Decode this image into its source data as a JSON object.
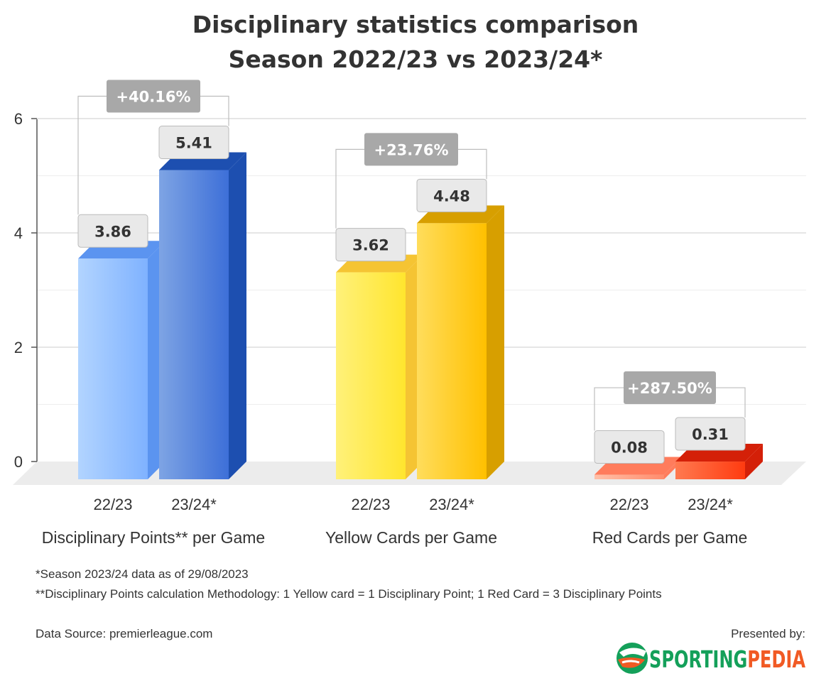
{
  "chart_data": {
    "type": "bar",
    "title": [
      "Disciplinary statistics comparison",
      "Season 2022/23 vs 2023/24*"
    ],
    "ylim": [
      0,
      6
    ],
    "yticks": [
      0,
      2,
      4,
      6
    ],
    "grid": true,
    "groups": [
      {
        "label": "Disciplinary Points** per Game",
        "change": "+40.16%",
        "bars": [
          {
            "category": "22/23",
            "value": 3.86,
            "label": "3.86"
          },
          {
            "category": "23/24*",
            "value": 5.41,
            "label": "5.41"
          }
        ]
      },
      {
        "label": "Yellow Cards per Game",
        "change": "+23.76%",
        "bars": [
          {
            "category": "22/23",
            "value": 3.62,
            "label": "3.62"
          },
          {
            "category": "23/24*",
            "value": 4.48,
            "label": "4.48"
          }
        ]
      },
      {
        "label": "Red Cards per Game",
        "change": "+287.50%",
        "bars": [
          {
            "category": "22/23",
            "value": 0.08,
            "label": "0.08"
          },
          {
            "category": "23/24*",
            "value": 0.31,
            "label": "0.31"
          }
        ]
      }
    ]
  },
  "colors": {
    "blue_light": [
      "#b2d4ff",
      "#7fb2ff",
      "#5b94f0"
    ],
    "blue_dark": [
      "#7ea4e4",
      "#3d6fd8",
      "#1d4fb0"
    ],
    "yellow_light": [
      "#fff17a",
      "#ffe52e",
      "#f5c433"
    ],
    "yellow_dark": [
      "#ffdd5c",
      "#ffc000",
      "#d79f00"
    ],
    "red_light": [
      "#ffc0a8",
      "#ff8c6c",
      "#ff7c5c"
    ],
    "red_dark": [
      "#ff7a50",
      "#ff3b10",
      "#d42008"
    ]
  },
  "footnotes": {
    "season_note": "*Season 2023/24 data as of 29/08/2023",
    "methodology_note": "**Disciplinary Points calculation Methodology: 1 Yellow card = 1 Disciplinary Point; 1 Red Card = 3 Disciplinary Points",
    "data_source": "Data Source: premierleague.com",
    "presented_by": "Presented by:"
  },
  "brand": {
    "name_part1": "SPORTING",
    "name_part2": "PEDIA",
    "color1": "#14a05a",
    "color2": "#f15a24",
    "logo_icon": "sportingpedia-s-logo-icon"
  }
}
